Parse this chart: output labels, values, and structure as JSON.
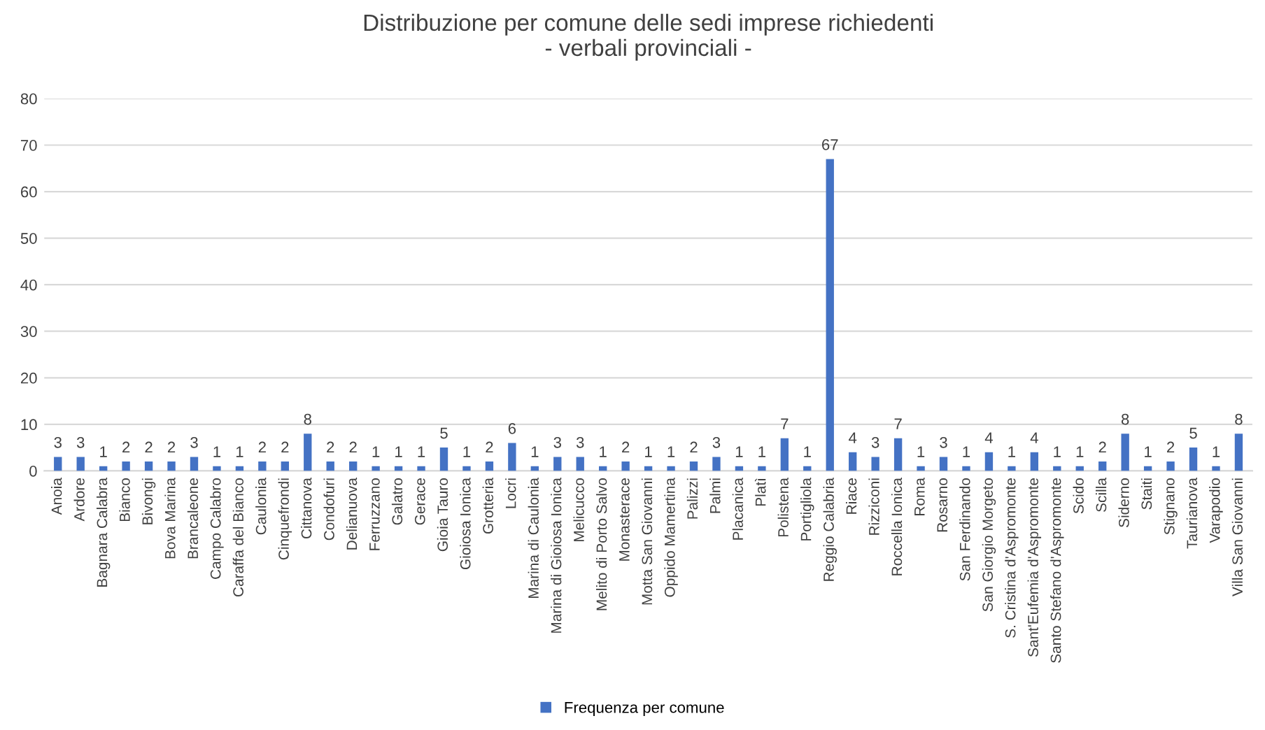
{
  "chart_data": {
    "type": "bar",
    "title": "Distribuzione per comune delle sedi imprese richiedenti\n- verbali provinciali -",
    "categories": [
      "Anoia",
      "Ardore",
      "Bagnara Calabra",
      "Bianco",
      "Bivongi",
      "Bova Marina",
      "Brancaleone",
      "Campo Calabro",
      "Caraffa del Bianco",
      "Caulonia",
      "Cinquefrondi",
      "Cittanova",
      "Condofuri",
      "Delianuova",
      "Ferruzzano",
      "Galatro",
      "Gerace",
      "Gioia Tauro",
      "Gioiosa Ionica",
      "Grotteria",
      "Locri",
      "Marina di Caulonia",
      "Marina di Gioiosa Ionica",
      "Melicucco",
      "Melito di Porto Salvo",
      "Monasterace",
      "Motta San Giovanni",
      "Oppido Mamertina",
      "Palizzi",
      "Palmi",
      "Placanica",
      "Platì",
      "Polistena",
      "Portigliola",
      "Reggio Calabria",
      "Riace",
      "Rizziconi",
      "Roccella Ionica",
      "Roma",
      "Rosarno",
      "San Ferdinando",
      "San Giorgio Morgeto",
      "S. Cristina d'Aspromonte",
      "Sant'Eufemia d'Aspromonte",
      "Santo Stefano d'Aspromonte",
      "Scido",
      "Scilla",
      "Siderno",
      "Staiti",
      "Stignano",
      "Taurianova",
      "Varapodio",
      "Villa San Giovanni"
    ],
    "series": [
      {
        "name": "Frequenza per comune",
        "color": "#4472c4",
        "values": [
          3,
          3,
          1,
          2,
          2,
          2,
          3,
          1,
          1,
          2,
          2,
          8,
          2,
          2,
          1,
          1,
          1,
          5,
          1,
          2,
          6,
          1,
          3,
          3,
          1,
          2,
          1,
          1,
          2,
          3,
          1,
          1,
          7,
          1,
          67,
          4,
          3,
          7,
          1,
          3,
          1,
          4,
          1,
          4,
          1,
          1,
          2,
          8,
          1,
          2,
          5,
          1,
          8
        ]
      }
    ],
    "ylim": [
      0,
      80
    ],
    "yticks": [
      0,
      10,
      20,
      30,
      40,
      50,
      60,
      70,
      80
    ],
    "grid": "y",
    "legend": "bottom",
    "data_labels": true
  }
}
